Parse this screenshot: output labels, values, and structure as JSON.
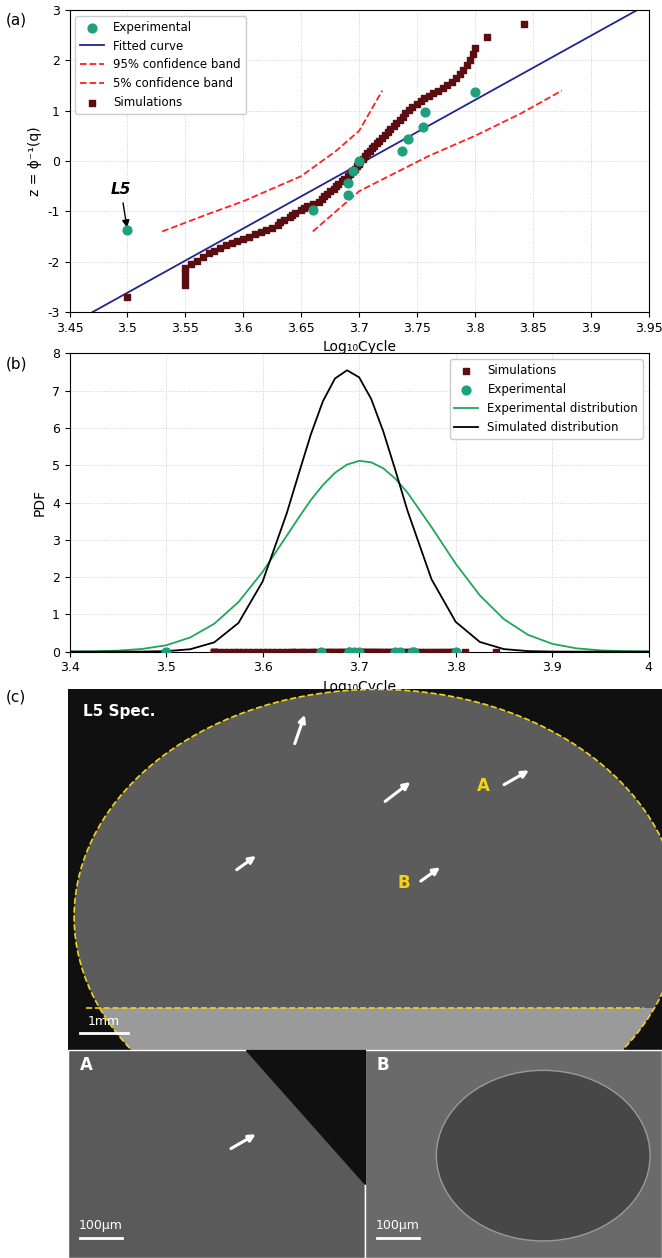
{
  "chart_data": [
    {
      "type": "scatter",
      "panel": "(a)",
      "xlabel": "Log₁₀Cycle",
      "ylabel": "z = ϕ⁻¹(q)",
      "xlim": [
        3.45,
        3.95
      ],
      "xticks": [
        3.45,
        3.5,
        3.55,
        3.6,
        3.65,
        3.7,
        3.75,
        3.8,
        3.85,
        3.9,
        3.95
      ],
      "ylim": [
        -3,
        3
      ],
      "yticks": [
        -3,
        -2,
        -1,
        0,
        1,
        2,
        3
      ],
      "grid": true,
      "legend": "upper left",
      "series": [
        {
          "name": "Experimental",
          "type": "scatter",
          "color": "#1fa07c",
          "marker": "circle",
          "x": [
            3.5,
            3.66,
            3.69,
            3.69,
            3.695,
            3.7,
            3.737,
            3.742,
            3.755,
            3.757,
            3.8
          ],
          "values": [
            -1.38,
            -0.97,
            -0.67,
            -0.43,
            -0.2,
            0.0,
            0.2,
            0.43,
            0.67,
            0.97,
            1.38
          ]
        },
        {
          "name": "Fitted curve",
          "type": "line",
          "color": "#23238f",
          "line_style": "solid",
          "x": [
            3.47,
            3.94
          ],
          "values": [
            -3,
            3
          ]
        },
        {
          "name": "95% confidence band",
          "type": "line",
          "color": "#ff2020",
          "line_style": "dashed",
          "x": [
            3.53,
            3.57,
            3.6,
            3.63,
            3.65,
            3.68,
            3.7,
            3.72
          ],
          "values": [
            -1.4,
            -1.05,
            -0.8,
            -0.5,
            -0.3,
            0.2,
            0.6,
            1.4
          ]
        },
        {
          "name": "5% confidence band",
          "type": "line",
          "color": "#ff2020",
          "line_style": "dashed",
          "x": [
            3.66,
            3.68,
            3.7,
            3.73,
            3.76,
            3.8,
            3.84,
            3.875
          ],
          "values": [
            -1.4,
            -1.0,
            -0.6,
            -0.25,
            0.1,
            0.5,
            0.95,
            1.4
          ]
        },
        {
          "name": "Simulations",
          "type": "scatter",
          "color": "#5a0e12",
          "marker": "square",
          "x": [
            3.5,
            3.55,
            3.55,
            3.55,
            3.55,
            3.555,
            3.56,
            3.565,
            3.57,
            3.575,
            3.58,
            3.585,
            3.59,
            3.595,
            3.6,
            3.605,
            3.61,
            3.615,
            3.62,
            3.625,
            3.63,
            3.632,
            3.635,
            3.64,
            3.642,
            3.645,
            3.65,
            3.652,
            3.655,
            3.66,
            3.665,
            3.668,
            3.67,
            3.672,
            3.675,
            3.678,
            3.68,
            3.682,
            3.685,
            3.687,
            3.69,
            3.692,
            3.694,
            3.696,
            3.698,
            3.7,
            3.701,
            3.703,
            3.705,
            3.707,
            3.709,
            3.711,
            3.713,
            3.715,
            3.717,
            3.72,
            3.722,
            3.725,
            3.727,
            3.73,
            3.732,
            3.735,
            3.738,
            3.74,
            3.743,
            3.746,
            3.75,
            3.753,
            3.756,
            3.76,
            3.764,
            3.768,
            3.772,
            3.776,
            3.78,
            3.784,
            3.787,
            3.79,
            3.793,
            3.796,
            3.798,
            3.8,
            3.81,
            3.842
          ],
          "values": [
            -2.7,
            -2.47,
            -2.35,
            -2.22,
            -2.12,
            -2.05,
            -1.98,
            -1.9,
            -1.83,
            -1.78,
            -1.72,
            -1.67,
            -1.62,
            -1.58,
            -1.55,
            -1.5,
            -1.46,
            -1.42,
            -1.37,
            -1.33,
            -1.28,
            -1.22,
            -1.17,
            -1.12,
            -1.08,
            -1.03,
            -0.98,
            -0.94,
            -0.9,
            -0.86,
            -0.82,
            -0.76,
            -0.7,
            -0.65,
            -0.6,
            -0.55,
            -0.5,
            -0.45,
            -0.4,
            -0.35,
            -0.3,
            -0.25,
            -0.2,
            -0.15,
            -0.1,
            -0.05,
            0.0,
            0.05,
            0.1,
            0.15,
            0.2,
            0.25,
            0.3,
            0.35,
            0.4,
            0.46,
            0.52,
            0.58,
            0.64,
            0.7,
            0.76,
            0.82,
            0.88,
            0.95,
            1.02,
            1.08,
            1.14,
            1.2,
            1.25,
            1.3,
            1.35,
            1.4,
            1.45,
            1.52,
            1.58,
            1.65,
            1.72,
            1.8,
            1.9,
            2.0,
            2.12,
            2.25,
            2.47,
            2.72
          ]
        }
      ],
      "annotations": [
        {
          "text": "L5",
          "x": 3.5,
          "y": -1.38
        }
      ]
    },
    {
      "type": "line",
      "panel": "(b)",
      "xlabel": "Log₁₀Cycle",
      "ylabel": "PDF",
      "xlim": [
        3.4,
        4
      ],
      "xticks": [
        3.4,
        3.5,
        3.6,
        3.7,
        3.8,
        3.9,
        4
      ],
      "ylim": [
        0,
        8
      ],
      "yticks": [
        0,
        1,
        2,
        3,
        4,
        5,
        6,
        7,
        8
      ],
      "grid": true,
      "legend": "upper right",
      "series": [
        {
          "name": "Simulations",
          "type": "scatter",
          "color": "#5a0e12",
          "marker": "square",
          "x": [
            3.5,
            3.55,
            3.55,
            3.55,
            3.55,
            3.555,
            3.56,
            3.565,
            3.57,
            3.575,
            3.58,
            3.585,
            3.59,
            3.595,
            3.6,
            3.605,
            3.61,
            3.615,
            3.62,
            3.625,
            3.63,
            3.632,
            3.635,
            3.64,
            3.642,
            3.645,
            3.65,
            3.652,
            3.655,
            3.66,
            3.665,
            3.668,
            3.67,
            3.672,
            3.675,
            3.678,
            3.68,
            3.682,
            3.685,
            3.687,
            3.69,
            3.692,
            3.694,
            3.696,
            3.698,
            3.7,
            3.701,
            3.703,
            3.705,
            3.707,
            3.709,
            3.711,
            3.713,
            3.715,
            3.717,
            3.72,
            3.722,
            3.725,
            3.727,
            3.73,
            3.732,
            3.735,
            3.738,
            3.74,
            3.743,
            3.746,
            3.75,
            3.753,
            3.756,
            3.76,
            3.764,
            3.768,
            3.772,
            3.776,
            3.78,
            3.784,
            3.787,
            3.79,
            3.793,
            3.796,
            3.798,
            3.8,
            3.81,
            3.842
          ],
          "values": [
            0,
            0,
            0,
            0,
            0,
            0,
            0,
            0,
            0,
            0,
            0,
            0,
            0,
            0,
            0,
            0,
            0,
            0,
            0,
            0,
            0,
            0,
            0,
            0,
            0,
            0,
            0,
            0,
            0,
            0,
            0,
            0,
            0,
            0,
            0,
            0,
            0,
            0,
            0,
            0,
            0,
            0,
            0,
            0,
            0,
            0,
            0,
            0,
            0,
            0,
            0,
            0,
            0,
            0,
            0,
            0,
            0,
            0,
            0,
            0,
            0,
            0,
            0,
            0,
            0,
            0,
            0,
            0,
            0,
            0,
            0,
            0,
            0,
            0,
            0,
            0,
            0,
            0,
            0,
            0,
            0,
            0,
            0,
            0
          ]
        },
        {
          "name": "Experimental",
          "type": "scatter",
          "color": "#1fa07c",
          "marker": "circle",
          "x": [
            3.5,
            3.66,
            3.69,
            3.69,
            3.695,
            3.7,
            3.737,
            3.742,
            3.755,
            3.757,
            3.8
          ],
          "values": [
            0,
            0,
            0,
            0,
            0,
            0,
            0,
            0,
            0,
            0,
            0
          ]
        },
        {
          "name": "Experimental distribution",
          "type": "line",
          "color": "#1fa65a",
          "line_style": "solid",
          "x": [
            3.4,
            3.425,
            3.45,
            3.475,
            3.5,
            3.525,
            3.55,
            3.575,
            3.6,
            3.625,
            3.6375,
            3.65,
            3.6625,
            3.675,
            3.6875,
            3.7,
            3.7125,
            3.725,
            3.7375,
            3.75,
            3.775,
            3.8,
            3.825,
            3.85,
            3.875,
            3.9,
            3.925,
            3.95,
            3.975,
            4.0
          ],
          "values": [
            0.003,
            0.009,
            0.027,
            0.072,
            0.17,
            0.38,
            0.75,
            1.33,
            2.14,
            3.11,
            3.6,
            4.07,
            4.47,
            4.8,
            5.02,
            5.12,
            5.08,
            4.92,
            4.64,
            4.27,
            3.34,
            2.36,
            1.51,
            0.87,
            0.45,
            0.21,
            0.089,
            0.034,
            0.012,
            0.004
          ]
        },
        {
          "name": "Simulated distribution",
          "type": "line",
          "color": "#000000",
          "line_style": "solid",
          "x": [
            3.4,
            3.425,
            3.45,
            3.475,
            3.5,
            3.525,
            3.55,
            3.575,
            3.6,
            3.625,
            3.6375,
            3.65,
            3.6625,
            3.675,
            3.6875,
            3.7,
            3.7125,
            3.725,
            3.7375,
            3.75,
            3.775,
            3.8,
            3.825,
            3.85,
            3.875,
            3.9,
            3.925,
            3.95,
            3.975,
            4.0
          ],
          "values": [
            0.0,
            0.0,
            0.0,
            0.002,
            0.013,
            0.064,
            0.25,
            0.77,
            1.88,
            3.71,
            4.78,
            5.83,
            6.72,
            7.33,
            7.55,
            7.36,
            6.78,
            5.91,
            4.87,
            3.79,
            1.94,
            0.8,
            0.26,
            0.068,
            0.014,
            0.002,
            0.0,
            0.0,
            0.0,
            0.0
          ]
        }
      ]
    }
  ],
  "image": {
    "panel": "(c)",
    "title": "L5 Spec.",
    "scale_bar": "1mm",
    "regions": [
      "A",
      "B"
    ],
    "insets": [
      {
        "label": "A",
        "scale_bar": "100μm"
      },
      {
        "label": "B",
        "scale_bar": "100μm"
      }
    ]
  }
}
